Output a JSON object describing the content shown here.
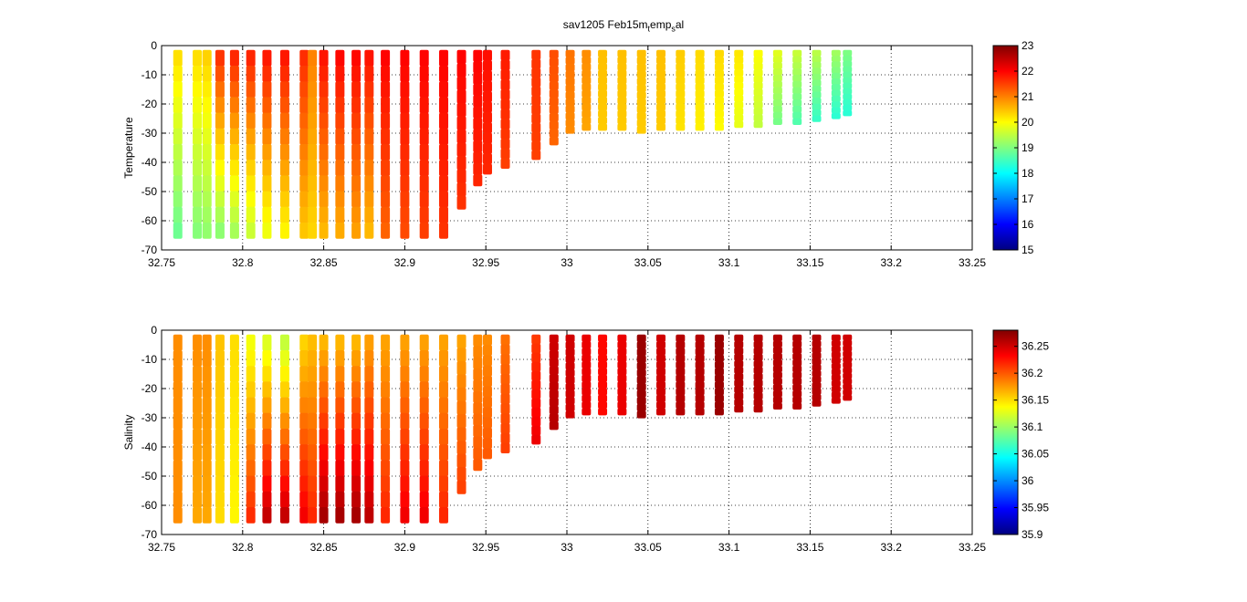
{
  "figure": {
    "title_parts": [
      "sav1205 Feb15m",
      "t",
      "emp",
      "s",
      "al"
    ]
  },
  "chart_data": [
    {
      "type": "scatter",
      "title": "",
      "xlabel": "",
      "ylabel": "Temperature",
      "xlim": [
        32.75,
        33.25
      ],
      "ylim": [
        -70,
        0
      ],
      "xticks": [
        "32.75",
        "32.8",
        "32.85",
        "32.9",
        "32.95",
        "33",
        "33.05",
        "33.1",
        "33.15",
        "33.2",
        "33.25"
      ],
      "yticks": [
        "0",
        "-10",
        "-20",
        "-30",
        "-40",
        "-50",
        "-60",
        "-70"
      ],
      "grid": true,
      "colormap": "jet",
      "colorbar": {
        "min": 15,
        "max": 23,
        "ticks": [
          "15",
          "16",
          "17",
          "18",
          "19",
          "20",
          "21",
          "22",
          "23"
        ]
      },
      "casts": [
        {
          "x": 32.76,
          "ymin": -66,
          "v_top": 20.3,
          "v_bot": 18.8
        },
        {
          "x": 32.772,
          "ymin": -66,
          "v_top": 20.3,
          "v_bot": 19.0
        },
        {
          "x": 32.778,
          "ymin": -66,
          "v_top": 20.4,
          "v_bot": 19.1
        },
        {
          "x": 32.786,
          "ymin": -66,
          "v_top": 21.7,
          "v_bot": 19.0
        },
        {
          "x": 32.795,
          "ymin": -66,
          "v_top": 21.8,
          "v_bot": 19.2
        },
        {
          "x": 32.805,
          "ymin": -66,
          "v_top": 21.8,
          "v_bot": 19.5
        },
        {
          "x": 32.815,
          "ymin": -66,
          "v_top": 21.9,
          "v_bot": 19.8
        },
        {
          "x": 32.826,
          "ymin": -66,
          "v_top": 21.9,
          "v_bot": 20.0
        },
        {
          "x": 32.838,
          "ymin": -66,
          "v_top": 21.7,
          "v_bot": 20.4
        },
        {
          "x": 32.843,
          "ymin": -66,
          "v_top": 21.0,
          "v_bot": 20.3
        },
        {
          "x": 32.85,
          "ymin": -66,
          "v_top": 21.9,
          "v_bot": 20.5
        },
        {
          "x": 32.86,
          "ymin": -66,
          "v_top": 22.0,
          "v_bot": 20.6
        },
        {
          "x": 32.87,
          "ymin": -66,
          "v_top": 22.0,
          "v_bot": 20.7
        },
        {
          "x": 32.878,
          "ymin": -66,
          "v_top": 21.9,
          "v_bot": 20.5
        },
        {
          "x": 32.888,
          "ymin": -66,
          "v_top": 22.0,
          "v_bot": 21.2
        },
        {
          "x": 32.9,
          "ymin": -66,
          "v_top": 22.0,
          "v_bot": 21.4
        },
        {
          "x": 32.912,
          "ymin": -66,
          "v_top": 22.0,
          "v_bot": 21.5
        },
        {
          "x": 32.924,
          "ymin": -66,
          "v_top": 22.0,
          "v_bot": 21.6
        },
        {
          "x": 32.935,
          "ymin": -56,
          "v_top": 22.0,
          "v_bot": 21.6
        },
        {
          "x": 32.945,
          "ymin": -48,
          "v_top": 22.0,
          "v_bot": 21.7
        },
        {
          "x": 32.951,
          "ymin": -44,
          "v_top": 21.9,
          "v_bot": 21.7
        },
        {
          "x": 32.962,
          "ymin": -42,
          "v_top": 21.8,
          "v_bot": 21.5
        },
        {
          "x": 32.981,
          "ymin": -39,
          "v_top": 21.6,
          "v_bot": 21.5
        },
        {
          "x": 32.992,
          "ymin": -34,
          "v_top": 21.4,
          "v_bot": 21.2
        },
        {
          "x": 33.002,
          "ymin": -30,
          "v_top": 21.1,
          "v_bot": 20.9
        },
        {
          "x": 33.012,
          "ymin": -29,
          "v_top": 20.9,
          "v_bot": 20.7
        },
        {
          "x": 33.022,
          "ymin": -29,
          "v_top": 20.5,
          "v_bot": 20.4
        },
        {
          "x": 33.034,
          "ymin": -29,
          "v_top": 20.5,
          "v_bot": 20.4
        },
        {
          "x": 33.046,
          "ymin": -30,
          "v_top": 20.5,
          "v_bot": 20.4
        },
        {
          "x": 33.058,
          "ymin": -29,
          "v_top": 20.5,
          "v_bot": 20.4
        },
        {
          "x": 33.07,
          "ymin": -29,
          "v_top": 20.4,
          "v_bot": 20.2
        },
        {
          "x": 33.082,
          "ymin": -29,
          "v_top": 20.3,
          "v_bot": 20.1
        },
        {
          "x": 33.094,
          "ymin": -29,
          "v_top": 20.3,
          "v_bot": 20.0
        },
        {
          "x": 33.106,
          "ymin": -28,
          "v_top": 20.2,
          "v_bot": 19.8
        },
        {
          "x": 33.118,
          "ymin": -28,
          "v_top": 20.0,
          "v_bot": 19.5
        },
        {
          "x": 33.13,
          "ymin": -27,
          "v_top": 19.8,
          "v_bot": 18.9
        },
        {
          "x": 33.142,
          "ymin": -27,
          "v_top": 19.6,
          "v_bot": 18.6
        },
        {
          "x": 33.154,
          "ymin": -26,
          "v_top": 19.5,
          "v_bot": 18.4
        },
        {
          "x": 33.166,
          "ymin": -25,
          "v_top": 19.3,
          "v_bot": 18.3
        },
        {
          "x": 33.173,
          "ymin": -24,
          "v_top": 19.0,
          "v_bot": 18.3
        }
      ]
    },
    {
      "type": "scatter",
      "title": "",
      "xlabel": "",
      "ylabel": "Salinity",
      "xlim": [
        32.75,
        33.25
      ],
      "ylim": [
        -70,
        0
      ],
      "xticks": [
        "32.75",
        "32.8",
        "32.85",
        "32.9",
        "32.95",
        "33",
        "33.05",
        "33.1",
        "33.15",
        "33.2",
        "33.25"
      ],
      "yticks": [
        "0",
        "-10",
        "-20",
        "-30",
        "-40",
        "-50",
        "-60",
        "-70"
      ],
      "grid": true,
      "colormap": "jet",
      "colorbar": {
        "min": 35.9,
        "max": 36.28,
        "ticks": [
          "35.9",
          "35.95",
          "36",
          "36.05",
          "36.1",
          "36.15",
          "36.2",
          "36.25"
        ]
      },
      "casts": [
        {
          "x": 32.76,
          "ymin": -66,
          "v_top": 36.18,
          "v_bot": 36.18
        },
        {
          "x": 32.772,
          "ymin": -66,
          "v_top": 36.18,
          "v_bot": 36.17
        },
        {
          "x": 32.778,
          "ymin": -66,
          "v_top": 36.18,
          "v_bot": 36.17
        },
        {
          "x": 32.786,
          "ymin": -66,
          "v_top": 36.16,
          "v_bot": 36.15
        },
        {
          "x": 32.795,
          "ymin": -66,
          "v_top": 36.15,
          "v_bot": 36.14
        },
        {
          "x": 32.805,
          "ymin": -66,
          "v_top": 36.13,
          "v_bot": 36.22
        },
        {
          "x": 32.815,
          "ymin": -66,
          "v_top": 36.12,
          "v_bot": 36.26
        },
        {
          "x": 32.826,
          "ymin": -66,
          "v_top": 36.11,
          "v_bot": 36.26
        },
        {
          "x": 32.838,
          "ymin": -66,
          "v_top": 36.15,
          "v_bot": 36.24
        },
        {
          "x": 32.843,
          "ymin": -66,
          "v_top": 36.16,
          "v_bot": 36.22
        },
        {
          "x": 32.85,
          "ymin": -66,
          "v_top": 36.16,
          "v_bot": 36.27
        },
        {
          "x": 32.86,
          "ymin": -66,
          "v_top": 36.16,
          "v_bot": 36.27
        },
        {
          "x": 32.87,
          "ymin": -66,
          "v_top": 36.16,
          "v_bot": 36.27
        },
        {
          "x": 32.878,
          "ymin": -66,
          "v_top": 36.17,
          "v_bot": 36.26
        },
        {
          "x": 32.888,
          "ymin": -66,
          "v_top": 36.17,
          "v_bot": 36.22
        },
        {
          "x": 32.9,
          "ymin": -66,
          "v_top": 36.17,
          "v_bot": 36.24
        },
        {
          "x": 32.912,
          "ymin": -66,
          "v_top": 36.17,
          "v_bot": 36.24
        },
        {
          "x": 32.924,
          "ymin": -66,
          "v_top": 36.17,
          "v_bot": 36.22
        },
        {
          "x": 32.935,
          "ymin": -56,
          "v_top": 36.17,
          "v_bot": 36.21
        },
        {
          "x": 32.945,
          "ymin": -48,
          "v_top": 36.18,
          "v_bot": 36.2
        },
        {
          "x": 32.951,
          "ymin": -44,
          "v_top": 36.18,
          "v_bot": 36.2
        },
        {
          "x": 32.962,
          "ymin": -42,
          "v_top": 36.19,
          "v_bot": 36.21
        },
        {
          "x": 32.981,
          "ymin": -39,
          "v_top": 36.21,
          "v_bot": 36.24
        },
        {
          "x": 32.992,
          "ymin": -34,
          "v_top": 36.25,
          "v_bot": 36.26
        },
        {
          "x": 33.002,
          "ymin": -30,
          "v_top": 36.25,
          "v_bot": 36.25
        },
        {
          "x": 33.012,
          "ymin": -29,
          "v_top": 36.24,
          "v_bot": 36.24
        },
        {
          "x": 33.022,
          "ymin": -29,
          "v_top": 36.23,
          "v_bot": 36.23
        },
        {
          "x": 33.034,
          "ymin": -29,
          "v_top": 36.24,
          "v_bot": 36.24
        },
        {
          "x": 33.046,
          "ymin": -30,
          "v_top": 36.27,
          "v_bot": 36.27
        },
        {
          "x": 33.058,
          "ymin": -29,
          "v_top": 36.25,
          "v_bot": 36.25
        },
        {
          "x": 33.07,
          "ymin": -29,
          "v_top": 36.26,
          "v_bot": 36.26
        },
        {
          "x": 33.082,
          "ymin": -29,
          "v_top": 36.26,
          "v_bot": 36.26
        },
        {
          "x": 33.094,
          "ymin": -29,
          "v_top": 36.27,
          "v_bot": 36.27
        },
        {
          "x": 33.106,
          "ymin": -28,
          "v_top": 36.26,
          "v_bot": 36.26
        },
        {
          "x": 33.118,
          "ymin": -28,
          "v_top": 36.26,
          "v_bot": 36.26
        },
        {
          "x": 33.13,
          "ymin": -27,
          "v_top": 36.26,
          "v_bot": 36.26
        },
        {
          "x": 33.142,
          "ymin": -27,
          "v_top": 36.26,
          "v_bot": 36.26
        },
        {
          "x": 33.154,
          "ymin": -26,
          "v_top": 36.26,
          "v_bot": 36.26
        },
        {
          "x": 33.166,
          "ymin": -25,
          "v_top": 36.25,
          "v_bot": 36.25
        },
        {
          "x": 33.173,
          "ymin": -24,
          "v_top": 36.25,
          "v_bot": 36.25
        }
      ]
    }
  ]
}
